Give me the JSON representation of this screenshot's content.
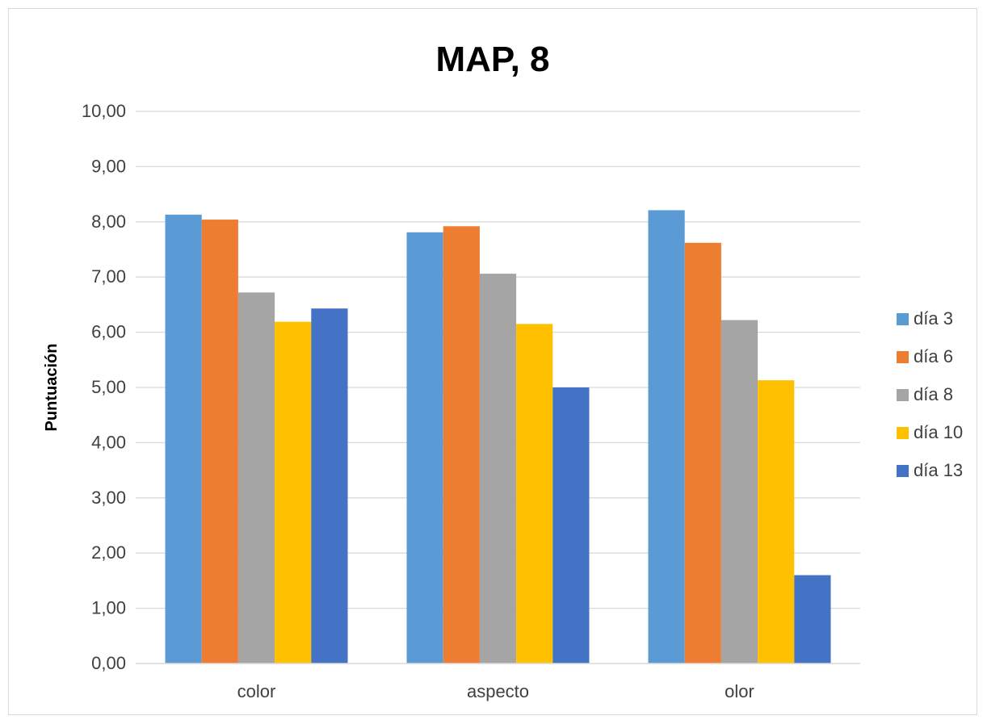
{
  "chart_data": {
    "type": "bar",
    "title": "MAP, 8",
    "xlabel": "",
    "ylabel": "Puntuación",
    "ylim": [
      0,
      10
    ],
    "yticks": [
      "0,00",
      "1,00",
      "2,00",
      "3,00",
      "4,00",
      "5,00",
      "6,00",
      "7,00",
      "8,00",
      "9,00",
      "10,00"
    ],
    "grid": true,
    "legend_position": "right",
    "categories": [
      "color",
      "aspecto",
      "olor"
    ],
    "series": [
      {
        "name": "día 3",
        "color": "#5B9BD5",
        "values": [
          8.13,
          7.81,
          8.21
        ]
      },
      {
        "name": "día 6",
        "color": "#ED7D31",
        "values": [
          8.04,
          7.92,
          7.62
        ]
      },
      {
        "name": "día 8",
        "color": "#A5A5A5",
        "values": [
          6.72,
          7.06,
          6.22
        ]
      },
      {
        "name": "día 10",
        "color": "#FFC000",
        "values": [
          6.19,
          6.15,
          5.13
        ]
      },
      {
        "name": "día 13",
        "color": "#4472C4",
        "values": [
          6.43,
          5.0,
          1.6
        ]
      }
    ]
  }
}
